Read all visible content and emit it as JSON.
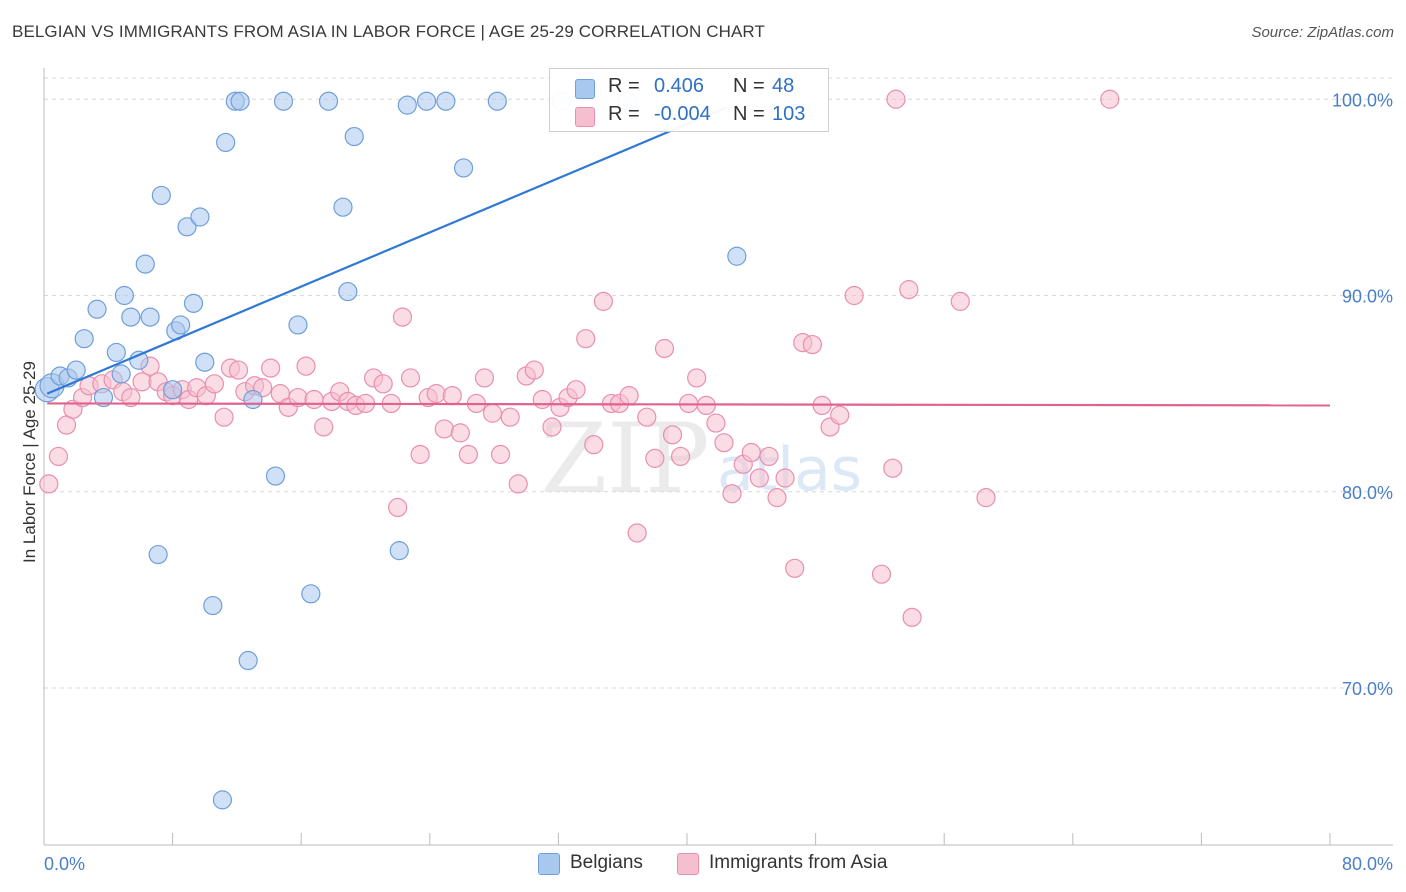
{
  "title": "BELGIAN VS IMMIGRANTS FROM ASIA IN LABOR FORCE | AGE 25-29 CORRELATION CHART",
  "source": "Source: ZipAtlas.com",
  "watermark": {
    "zip": "ZIP",
    "atlas": "atlas"
  },
  "colors": {
    "blue_fill": "#a9c8f0",
    "blue_stroke": "#6f9fd8",
    "blue_line": "#2f78d4",
    "pink_fill": "#f6bfd0",
    "pink_stroke": "#e98fae",
    "pink_line": "#e0628f",
    "tick_label": "#4a7fc8",
    "grid": "#d9d9d9"
  },
  "legend": {
    "rows": [
      {
        "r_label": "R =",
        "r_value": "0.406",
        "n_label": "N =",
        "n_value": "48"
      },
      {
        "r_label": "R =",
        "r_value": "-0.004",
        "n_label": "N =",
        "n_value": "103"
      }
    ]
  },
  "bottom_legend": [
    "Belgians",
    "Immigrants from Asia"
  ],
  "chart_data": {
    "type": "scatter",
    "xlabel": "",
    "ylabel": "In Labor Force | Age 25-29",
    "xlim": [
      0,
      80
    ],
    "ylim": [
      62,
      102
    ],
    "x_tick_labels": [
      "0.0%",
      "80.0%"
    ],
    "y_ticks": [
      70,
      80,
      90,
      100
    ],
    "y_tick_labels": [
      "70.0%",
      "80.0%",
      "90.0%",
      "100.0%"
    ],
    "grid": true,
    "legend_placement": "top-center",
    "series": [
      {
        "name": "Belgians",
        "color": "blue",
        "trend": {
          "x": [
            0.2,
            42.5
          ],
          "y": [
            85.0,
            99.6
          ]
        },
        "points": [
          [
            0.2,
            85.2
          ],
          [
            0.5,
            85.4
          ],
          [
            1.0,
            85.9
          ],
          [
            1.5,
            85.8
          ],
          [
            2.0,
            86.2
          ],
          [
            2.5,
            87.8
          ],
          [
            3.3,
            89.3
          ],
          [
            3.7,
            84.8
          ],
          [
            4.5,
            87.1
          ],
          [
            5.0,
            90.0
          ],
          [
            5.4,
            88.9
          ],
          [
            5.9,
            86.7
          ],
          [
            6.3,
            91.6
          ],
          [
            6.6,
            88.9
          ],
          [
            7.3,
            95.1
          ],
          [
            8.2,
            88.2
          ],
          [
            8.5,
            88.5
          ],
          [
            8.9,
            93.5
          ],
          [
            9.3,
            89.6
          ],
          [
            9.7,
            94.0
          ],
          [
            10.0,
            86.6
          ],
          [
            11.3,
            97.8
          ],
          [
            11.9,
            99.9
          ],
          [
            12.2,
            99.9
          ],
          [
            13.0,
            84.7
          ],
          [
            14.9,
            99.9
          ],
          [
            15.8,
            88.5
          ],
          [
            17.7,
            99.9
          ],
          [
            18.6,
            94.5
          ],
          [
            18.9,
            90.2
          ],
          [
            19.3,
            98.1
          ],
          [
            22.6,
            99.7
          ],
          [
            23.8,
            99.9
          ],
          [
            25.0,
            99.9
          ],
          [
            26.1,
            96.5
          ],
          [
            28.2,
            99.9
          ],
          [
            32.2,
            99.9
          ],
          [
            36.3,
            99.9
          ],
          [
            43.1,
            92.0
          ],
          [
            8.0,
            85.2
          ],
          [
            14.4,
            80.8
          ],
          [
            7.1,
            76.8
          ],
          [
            10.5,
            74.2
          ],
          [
            12.7,
            71.4
          ],
          [
            16.6,
            74.8
          ],
          [
            22.1,
            77.0
          ],
          [
            11.1,
            64.3
          ],
          [
            4.8,
            86.0
          ]
        ]
      },
      {
        "name": "Immigrants from Asia",
        "color": "pink",
        "trend": {
          "x": [
            0.2,
            80.0
          ],
          "y": [
            84.5,
            84.4
          ]
        },
        "points": [
          [
            0.3,
            80.4
          ],
          [
            0.9,
            81.8
          ],
          [
            1.4,
            83.4
          ],
          [
            1.8,
            84.2
          ],
          [
            2.4,
            84.8
          ],
          [
            2.8,
            85.4
          ],
          [
            3.6,
            85.5
          ],
          [
            4.3,
            85.7
          ],
          [
            4.9,
            85.1
          ],
          [
            5.4,
            84.8
          ],
          [
            6.1,
            85.6
          ],
          [
            6.6,
            86.4
          ],
          [
            7.1,
            85.6
          ],
          [
            7.6,
            85.1
          ],
          [
            8.0,
            84.9
          ],
          [
            8.6,
            85.2
          ],
          [
            9.0,
            84.7
          ],
          [
            9.5,
            85.3
          ],
          [
            10.1,
            84.9
          ],
          [
            10.6,
            85.5
          ],
          [
            11.2,
            83.8
          ],
          [
            11.6,
            86.3
          ],
          [
            12.1,
            86.2
          ],
          [
            12.5,
            85.1
          ],
          [
            13.1,
            85.4
          ],
          [
            13.6,
            85.3
          ],
          [
            14.1,
            86.3
          ],
          [
            14.7,
            85.0
          ],
          [
            15.2,
            84.3
          ],
          [
            15.8,
            84.8
          ],
          [
            16.3,
            86.4
          ],
          [
            16.8,
            84.7
          ],
          [
            17.4,
            83.3
          ],
          [
            17.9,
            84.6
          ],
          [
            18.4,
            85.1
          ],
          [
            18.9,
            84.6
          ],
          [
            19.4,
            84.4
          ],
          [
            20.0,
            84.5
          ],
          [
            20.5,
            85.8
          ],
          [
            21.1,
            85.5
          ],
          [
            21.6,
            84.5
          ],
          [
            22.0,
            79.2
          ],
          [
            22.3,
            88.9
          ],
          [
            22.8,
            85.8
          ],
          [
            23.4,
            81.9
          ],
          [
            23.9,
            84.8
          ],
          [
            24.4,
            85.0
          ],
          [
            24.9,
            83.2
          ],
          [
            25.4,
            84.9
          ],
          [
            25.9,
            83.0
          ],
          [
            26.4,
            81.9
          ],
          [
            26.9,
            84.5
          ],
          [
            27.4,
            85.8
          ],
          [
            27.9,
            84.0
          ],
          [
            28.4,
            81.9
          ],
          [
            29.0,
            83.8
          ],
          [
            29.5,
            80.4
          ],
          [
            30.0,
            85.9
          ],
          [
            30.5,
            86.2
          ],
          [
            31.0,
            84.7
          ],
          [
            31.6,
            83.3
          ],
          [
            32.1,
            84.3
          ],
          [
            32.6,
            84.8
          ],
          [
            33.1,
            85.2
          ],
          [
            33.7,
            87.8
          ],
          [
            34.2,
            82.4
          ],
          [
            34.8,
            89.7
          ],
          [
            35.3,
            84.5
          ],
          [
            35.8,
            84.5
          ],
          [
            36.4,
            84.9
          ],
          [
            36.9,
            77.9
          ],
          [
            37.5,
            83.8
          ],
          [
            38.0,
            81.7
          ],
          [
            38.6,
            87.3
          ],
          [
            39.1,
            82.9
          ],
          [
            39.6,
            81.8
          ],
          [
            40.1,
            84.5
          ],
          [
            40.6,
            85.8
          ],
          [
            41.2,
            84.4
          ],
          [
            41.8,
            83.5
          ],
          [
            42.3,
            82.5
          ],
          [
            42.8,
            79.9
          ],
          [
            43.5,
            81.4
          ],
          [
            44.0,
            82.0
          ],
          [
            44.5,
            80.7
          ],
          [
            45.1,
            81.8
          ],
          [
            45.6,
            79.7
          ],
          [
            46.1,
            80.7
          ],
          [
            46.7,
            76.1
          ],
          [
            47.2,
            87.6
          ],
          [
            47.8,
            87.5
          ],
          [
            48.4,
            84.4
          ],
          [
            48.9,
            83.3
          ],
          [
            49.5,
            83.9
          ],
          [
            50.4,
            90.0
          ],
          [
            52.1,
            75.8
          ],
          [
            52.8,
            81.2
          ],
          [
            53.8,
            90.3
          ],
          [
            54.0,
            73.6
          ],
          [
            57.0,
            89.7
          ],
          [
            58.6,
            79.7
          ],
          [
            53.0,
            100.0
          ],
          [
            66.3,
            100.0
          ]
        ]
      }
    ]
  }
}
